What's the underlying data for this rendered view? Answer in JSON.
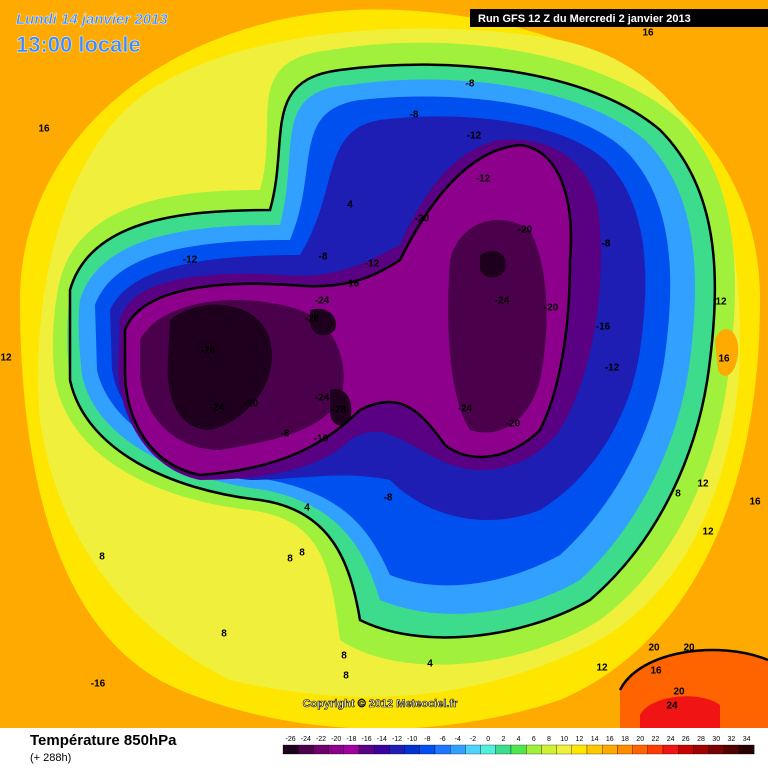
{
  "header": {
    "date": "Lundi 14 janvier 2013",
    "time": "13:00 locale",
    "run": "Run GFS 12 Z du Mercredi 2 janvier 2013"
  },
  "map": {
    "contour_labels": [
      16,
      16,
      -8,
      -8,
      -12,
      -12,
      4,
      -20,
      -20,
      -8,
      -12,
      -8,
      -12,
      -16,
      -24,
      -28,
      -24,
      -20,
      -16,
      12,
      16,
      12,
      -28,
      -12,
      -24,
      -28,
      -20,
      -24,
      -24,
      -20,
      -8,
      -16,
      -8,
      8,
      12,
      16,
      12,
      4,
      8,
      8,
      8,
      8,
      4,
      8,
      12,
      20,
      20,
      16,
      20,
      24,
      -16,
      8
    ],
    "copyright": "Copyright © 2012 Meteociel.fr"
  },
  "footer": {
    "title": "Température 850hPa",
    "lead": "(+ 288h)"
  },
  "legend": {
    "values": [
      -26,
      -24,
      -22,
      -20,
      -18,
      -16,
      -14,
      -12,
      -10,
      -8,
      -6,
      -4,
      -2,
      0,
      2,
      4,
      6,
      8,
      10,
      12,
      14,
      16,
      18,
      20,
      22,
      24,
      26,
      28,
      30,
      32,
      34
    ],
    "colors": [
      "#1e001e",
      "#4b004b",
      "#6e006e",
      "#8c008c",
      "#a000a0",
      "#5a0082",
      "#3c00a0",
      "#1e1eb4",
      "#0032d2",
      "#0050f0",
      "#1e78ff",
      "#32a0ff",
      "#50d2ff",
      "#50f0dc",
      "#3cdc8c",
      "#50e650",
      "#a0f03c",
      "#d2f032",
      "#f0f03c",
      "#ffe600",
      "#ffc800",
      "#ffaa00",
      "#ff8c00",
      "#ff6400",
      "#ff3c00",
      "#f01414",
      "#c80000",
      "#a00000",
      "#780000",
      "#500000",
      "#280000"
    ]
  }
}
